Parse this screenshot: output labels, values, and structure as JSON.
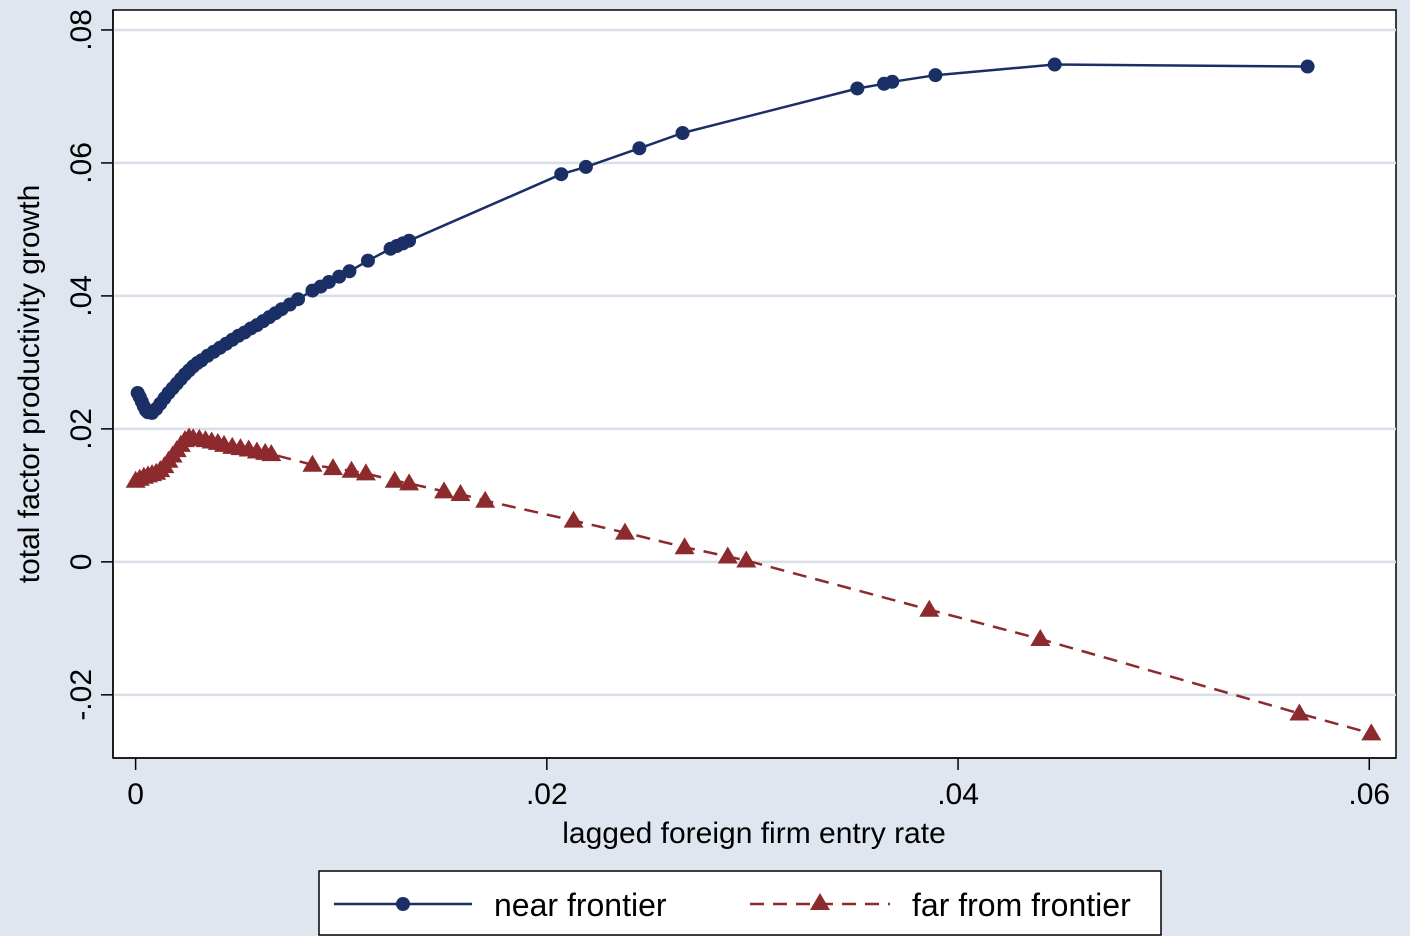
{
  "chart_data": {
    "type": "line",
    "title": "",
    "xlabel": "lagged foreign firm entry rate",
    "ylabel": "total factor productivity growth",
    "xlim": [
      -0.0011,
      0.0613
    ],
    "ylim": [
      -0.0295,
      0.083
    ],
    "x_ticks": [
      0,
      0.02,
      0.04,
      0.06
    ],
    "x_tick_labels": [
      "0",
      ".02",
      ".04",
      ".06"
    ],
    "y_ticks": [
      -0.02,
      0,
      0.02,
      0.04,
      0.06,
      0.08
    ],
    "y_tick_labels": [
      "-.02",
      "0",
      ".02",
      ".04",
      ".06",
      ".08"
    ],
    "grid": true,
    "legend_position": "bottom",
    "series": [
      {
        "name": "near frontier",
        "color": "#1a2f66",
        "line_style": "solid",
        "marker": "circle",
        "points": [
          [
            0.0001,
            0.0254
          ],
          [
            0.0002,
            0.0248
          ],
          [
            0.0003,
            0.0241
          ],
          [
            0.0004,
            0.0234
          ],
          [
            0.0005,
            0.0228
          ],
          [
            0.0006,
            0.0225
          ],
          [
            0.0008,
            0.0224
          ],
          [
            0.001,
            0.023
          ],
          [
            0.0012,
            0.0238
          ],
          [
            0.0014,
            0.0246
          ],
          [
            0.0016,
            0.0254
          ],
          [
            0.0018,
            0.0261
          ],
          [
            0.002,
            0.0268
          ],
          [
            0.0022,
            0.0275
          ],
          [
            0.0024,
            0.0282
          ],
          [
            0.0026,
            0.0288
          ],
          [
            0.0028,
            0.0294
          ],
          [
            0.003,
            0.0299
          ],
          [
            0.0032,
            0.0303
          ],
          [
            0.0035,
            0.031
          ],
          [
            0.0038,
            0.0316
          ],
          [
            0.0041,
            0.0322
          ],
          [
            0.0044,
            0.0328
          ],
          [
            0.0047,
            0.0334
          ],
          [
            0.005,
            0.034
          ],
          [
            0.0053,
            0.0345
          ],
          [
            0.0056,
            0.0351
          ],
          [
            0.0059,
            0.0356
          ],
          [
            0.0062,
            0.0362
          ],
          [
            0.0065,
            0.0368
          ],
          [
            0.0068,
            0.0374
          ],
          [
            0.0071,
            0.038
          ],
          [
            0.0075,
            0.0387
          ],
          [
            0.0079,
            0.0395
          ],
          [
            0.0086,
            0.0408
          ],
          [
            0.009,
            0.0414
          ],
          [
            0.0094,
            0.0421
          ],
          [
            0.0099,
            0.0429
          ],
          [
            0.0104,
            0.0437
          ],
          [
            0.0113,
            0.0453
          ],
          [
            0.0124,
            0.0471
          ],
          [
            0.0127,
            0.0475
          ],
          [
            0.013,
            0.0479
          ],
          [
            0.0133,
            0.0483
          ],
          [
            0.0207,
            0.0583
          ],
          [
            0.0219,
            0.0594
          ],
          [
            0.0245,
            0.0622
          ],
          [
            0.0266,
            0.0645
          ],
          [
            0.0351,
            0.0712
          ],
          [
            0.0364,
            0.0719
          ],
          [
            0.0368,
            0.0722
          ],
          [
            0.0389,
            0.0732
          ],
          [
            0.0447,
            0.0748
          ],
          [
            0.057,
            0.0745
          ]
        ]
      },
      {
        "name": "far from frontier",
        "color": "#8c2a2e",
        "line_style": "dashed",
        "marker": "triangle",
        "points": [
          [
            0.0,
            0.0122
          ],
          [
            0.0002,
            0.0125
          ],
          [
            0.0004,
            0.0128
          ],
          [
            0.0006,
            0.013
          ],
          [
            0.0008,
            0.0132
          ],
          [
            0.001,
            0.0134
          ],
          [
            0.0012,
            0.0138
          ],
          [
            0.0014,
            0.0144
          ],
          [
            0.0016,
            0.0152
          ],
          [
            0.0018,
            0.016
          ],
          [
            0.002,
            0.0168
          ],
          [
            0.0022,
            0.0176
          ],
          [
            0.0024,
            0.0183
          ],
          [
            0.0026,
            0.0187
          ],
          [
            0.0028,
            0.0186
          ],
          [
            0.0031,
            0.0185
          ],
          [
            0.0034,
            0.0183
          ],
          [
            0.0037,
            0.0181
          ],
          [
            0.004,
            0.0179
          ],
          [
            0.0043,
            0.0176
          ],
          [
            0.0047,
            0.0173
          ],
          [
            0.0051,
            0.0171
          ],
          [
            0.0055,
            0.0169
          ],
          [
            0.0059,
            0.0166
          ],
          [
            0.0063,
            0.0164
          ],
          [
            0.0066,
            0.0162
          ],
          [
            0.0086,
            0.0146
          ],
          [
            0.0096,
            0.0141
          ],
          [
            0.0105,
            0.0137
          ],
          [
            0.0112,
            0.0133
          ],
          [
            0.0126,
            0.0122
          ],
          [
            0.0133,
            0.0118
          ],
          [
            0.015,
            0.0106
          ],
          [
            0.0158,
            0.0102
          ],
          [
            0.017,
            0.0092
          ],
          [
            0.0213,
            0.0062
          ],
          [
            0.0238,
            0.0044
          ],
          [
            0.0267,
            0.0022
          ],
          [
            0.0288,
            0.0008
          ],
          [
            0.0297,
            0.0002
          ],
          [
            0.0386,
            -0.0072
          ],
          [
            0.044,
            -0.0116
          ],
          [
            0.0566,
            -0.0228
          ],
          [
            0.0601,
            -0.0258
          ]
        ]
      }
    ]
  }
}
